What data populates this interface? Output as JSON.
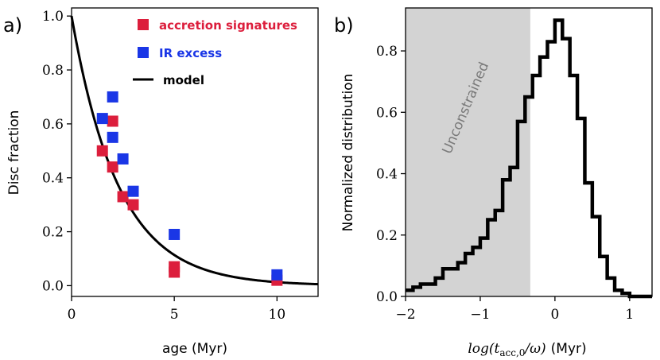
{
  "chart_data": [
    {
      "type": "scatter",
      "panel_label": "a)",
      "xlabel": "age (Myr)",
      "ylabel": "Disc fraction",
      "xlim": [
        0,
        12
      ],
      "ylim": [
        -0.04,
        1.03
      ],
      "xticks": [
        0,
        5,
        10
      ],
      "xtick_labels": [
        "0",
        "5",
        "10"
      ],
      "yticks": [
        0.0,
        0.2,
        0.4,
        0.6,
        0.8,
        1.0
      ],
      "ytick_labels": [
        "0.0",
        "0.2",
        "0.4",
        "0.6",
        "0.8",
        "1.0"
      ],
      "legend_position": "top-right",
      "series": [
        {
          "name": "accretion signatures",
          "color": "#dc1e3c",
          "x": [
            1.5,
            2.0,
            2.0,
            2.5,
            3.0,
            5.0,
            5.0,
            10.0
          ],
          "y": [
            0.5,
            0.61,
            0.44,
            0.33,
            0.3,
            0.07,
            0.05,
            0.02
          ]
        },
        {
          "name": "IR excess",
          "color": "#1a36e6",
          "x": [
            1.5,
            2.0,
            2.0,
            2.5,
            3.0,
            5.0,
            10.0
          ],
          "y": [
            0.62,
            0.7,
            0.55,
            0.47,
            0.35,
            0.19,
            0.04
          ]
        }
      ],
      "model": {
        "name": "model",
        "function": "exp(-t/2.3)",
        "tau": 2.3,
        "x_range": [
          0,
          12
        ]
      }
    },
    {
      "type": "histogram",
      "panel_label": "b)",
      "xlabel_math": "log(t",
      "xlabel_sub": "acc,0",
      "xlabel_tail": "/ω)",
      "xlabel_unit": "(Myr)",
      "ylabel": "Normalized distribution",
      "xlim": [
        -2.0,
        1.3
      ],
      "ylim": [
        0.0,
        0.94
      ],
      "xticks": [
        -2,
        -1,
        0,
        1
      ],
      "xtick_labels": [
        "−2",
        "−1",
        "0",
        "1"
      ],
      "yticks": [
        0.0,
        0.2,
        0.4,
        0.6,
        0.8
      ],
      "ytick_labels": [
        "0.0",
        "0.2",
        "0.4",
        "0.6",
        "0.8"
      ],
      "shaded_region": {
        "x_from": -2.0,
        "x_to": -0.33,
        "label": "Unconstrained",
        "color": "#d3d3d3"
      },
      "bin_edges": [
        -2.0,
        -1.9,
        -1.8,
        -1.7,
        -1.6,
        -1.5,
        -1.4,
        -1.3,
        -1.2,
        -1.1,
        -1.0,
        -0.9,
        -0.8,
        -0.7,
        -0.6,
        -0.5,
        -0.4,
        -0.3,
        -0.2,
        -0.1,
        0.0,
        0.1,
        0.2,
        0.3,
        0.4,
        0.5,
        0.6,
        0.7,
        0.8,
        0.9,
        1.0,
        1.1,
        1.2,
        1.3
      ],
      "values": [
        0.02,
        0.03,
        0.04,
        0.04,
        0.06,
        0.09,
        0.09,
        0.11,
        0.14,
        0.16,
        0.19,
        0.25,
        0.28,
        0.38,
        0.42,
        0.57,
        0.65,
        0.72,
        0.78,
        0.83,
        0.9,
        0.84,
        0.72,
        0.58,
        0.37,
        0.26,
        0.13,
        0.06,
        0.02,
        0.01,
        0.0,
        0.0,
        0.0
      ]
    }
  ]
}
